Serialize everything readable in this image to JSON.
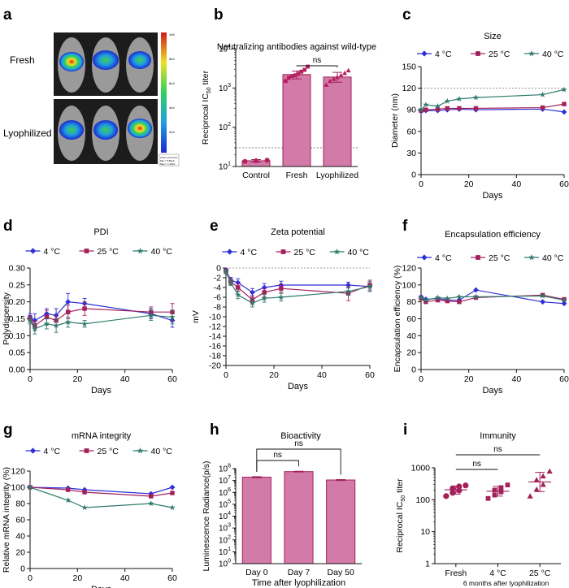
{
  "colors": {
    "c4": "#2f2fd8",
    "c25": "#a3205a",
    "c40": "#2f7a6d",
    "bar_fill": "#d27ba8",
    "bar_edge": "#a3205a",
    "lyo_marker": "#b5205e"
  },
  "panel_a": {
    "letter": "a",
    "row_labels": [
      "Fresh",
      "Lyophilized"
    ],
    "colorbar_ticks": [
      "1e5",
      "8e4",
      "6e4",
      "4e4",
      "2e4"
    ],
    "legend_lines": [
      "Units: p/s/cm²/sr",
      "Min = 5.82e3",
      "Max = 1.25e5"
    ]
  },
  "chart_data": [
    {
      "id": "b",
      "letter": "b",
      "type": "bar",
      "title": "Neutralizing antibodies against wild-type",
      "ylabel": "Reciprocal IC50 titer",
      "ylabel_main": "Reciprocal IC",
      "ylabel_sub": "50",
      "ylabel_tail": " titer",
      "yscale": "log",
      "ylim": [
        10,
        10000
      ],
      "yticks": [
        10,
        100,
        1000,
        10000
      ],
      "ytick_labels": [
        "10",
        "10",
        "10",
        "10"
      ],
      "ytick_exps": [
        "1",
        "2",
        "3",
        "4"
      ],
      "categories": [
        "Control",
        "Fresh",
        "Lyophilized"
      ],
      "values": [
        14,
        2200,
        1900
      ],
      "errors": [
        [
          13,
          15
        ],
        [
          1700,
          2700
        ],
        [
          1400,
          2500
        ]
      ],
      "points": [
        [
          13.5,
          14,
          14.5
        ],
        [
          1500,
          1800,
          2000,
          2100,
          2300,
          2600,
          2900,
          3500
        ],
        [
          1200,
          1500,
          1700,
          1900,
          2100,
          2400,
          2800
        ]
      ],
      "threshold": 30,
      "significance": [
        {
          "from": 1,
          "to": 2,
          "label": "ns"
        }
      ]
    },
    {
      "id": "c",
      "letter": "c",
      "type": "line",
      "title": "Size",
      "xlabel": "Days",
      "ylabel": "Diameter (nm)",
      "xlim": [
        0,
        60
      ],
      "ylim": [
        0,
        150
      ],
      "xticks": [
        0,
        20,
        40,
        60
      ],
      "yticks": [
        0,
        30,
        60,
        90,
        120,
        150
      ],
      "threshold": 120,
      "legend": [
        "4 °C",
        "25 °C",
        "40 °C"
      ],
      "series": [
        {
          "name": "4 °C",
          "x": [
            0,
            2,
            7,
            11,
            16,
            23,
            51,
            60
          ],
          "y": [
            88,
            89,
            89,
            90,
            91,
            90,
            91,
            87
          ]
        },
        {
          "name": "25 °C",
          "x": [
            0,
            2,
            7,
            11,
            16,
            23,
            51,
            60
          ],
          "y": [
            89,
            90,
            91,
            92,
            92,
            92,
            93,
            98
          ]
        },
        {
          "name": "40 °C",
          "x": [
            0,
            2,
            7,
            11,
            16,
            23,
            51,
            60
          ],
          "y": [
            90,
            97,
            95,
            102,
            105,
            107,
            111,
            118
          ]
        }
      ]
    },
    {
      "id": "d",
      "letter": "d",
      "type": "line",
      "title": "PDI",
      "xlabel": "Days",
      "ylabel": "Polydispersity",
      "xlim": [
        0,
        60
      ],
      "ylim": [
        0,
        0.3
      ],
      "xticks": [
        0,
        20,
        40,
        60
      ],
      "yticks": [
        0,
        0.05,
        0.1,
        0.15,
        0.2,
        0.25,
        0.3
      ],
      "ytick_labels": [
        "0.00",
        "0.05",
        "0.10",
        "0.15",
        "0.20",
        "0.25",
        "0.30"
      ],
      "legend": [
        "4 °C",
        "25 °C",
        "40 °C"
      ],
      "series": [
        {
          "name": "4 °C",
          "x": [
            0,
            2,
            7,
            11,
            16,
            23,
            51,
            60
          ],
          "y": [
            0.155,
            0.145,
            0.165,
            0.16,
            0.2,
            0.195,
            0.165,
            0.145
          ],
          "err": [
            0.01,
            0.02,
            0.015,
            0.02,
            0.025,
            0.015,
            0.015,
            0.02
          ]
        },
        {
          "name": "25 °C",
          "x": [
            0,
            2,
            7,
            11,
            16,
            23,
            51,
            60
          ],
          "y": [
            0.15,
            0.13,
            0.155,
            0.145,
            0.17,
            0.18,
            0.17,
            0.17
          ],
          "err": [
            0.01,
            0.015,
            0.02,
            0.015,
            0.02,
            0.02,
            0.015,
            0.025
          ]
        },
        {
          "name": "40 °C",
          "x": [
            0,
            2,
            7,
            11,
            16,
            23,
            51,
            60
          ],
          "y": [
            0.145,
            0.12,
            0.135,
            0.13,
            0.14,
            0.135,
            0.16,
            0.155
          ],
          "err": [
            0.01,
            0.015,
            0.015,
            0.02,
            0.015,
            0.01,
            0.015,
            0.02
          ]
        }
      ]
    },
    {
      "id": "e",
      "letter": "e",
      "type": "line",
      "title": "Zeta potential",
      "xlabel": "Days",
      "ylabel": "mV",
      "xlim": [
        0,
        60
      ],
      "ylim": [
        -20,
        0
      ],
      "xticks": [
        0,
        20,
        40,
        60
      ],
      "yticks": [
        0,
        -2,
        -4,
        -6,
        -8,
        -10,
        -12,
        -14,
        -16,
        -18,
        -20
      ],
      "threshold": 0,
      "legend": [
        "4 °C",
        "25 °C",
        "40 °C"
      ],
      "series": [
        {
          "name": "4 °C",
          "x": [
            0,
            2,
            5,
            11,
            16,
            23,
            51,
            60
          ],
          "y": [
            -0.5,
            -2.5,
            -3,
            -5,
            -4,
            -3.5,
            -3.5,
            -3.8
          ],
          "err": [
            0.4,
            0.6,
            0.8,
            0.8,
            0.8,
            0.8,
            0.6,
            1.0
          ]
        },
        {
          "name": "25 °C",
          "x": [
            0,
            2,
            5,
            11,
            16,
            23,
            51,
            60
          ],
          "y": [
            -0.6,
            -2.8,
            -4,
            -6.5,
            -5,
            -4.2,
            -5.2,
            -3.5
          ],
          "err": [
            0.4,
            0.6,
            0.8,
            0.8,
            0.8,
            0.8,
            1.5,
            1.0
          ]
        },
        {
          "name": "40 °C",
          "x": [
            0,
            2,
            5,
            11,
            16,
            23,
            51,
            60
          ],
          "y": [
            -0.8,
            -3,
            -5.5,
            -7.2,
            -6.2,
            -6,
            -4.8,
            -3.8
          ],
          "err": [
            0.4,
            0.6,
            0.8,
            0.8,
            0.8,
            0.8,
            0.8,
            1.0
          ]
        }
      ]
    },
    {
      "id": "f",
      "letter": "f",
      "type": "line",
      "title": "Encapsulation efficiency",
      "xlabel": "Days",
      "ylabel": "Encapsulation efficiency (%)",
      "xlim": [
        0,
        60
      ],
      "ylim": [
        0,
        120
      ],
      "xticks": [
        0,
        20,
        40,
        60
      ],
      "yticks": [
        0,
        20,
        40,
        60,
        80,
        100,
        120
      ],
      "legend": [
        "4 °C",
        "25 °C",
        "40 °C"
      ],
      "series": [
        {
          "name": "4 °C",
          "x": [
            0,
            2,
            7,
            11,
            16,
            23,
            51,
            60
          ],
          "y": [
            86,
            83,
            84,
            82,
            82,
            94,
            80,
            78
          ]
        },
        {
          "name": "25 °C",
          "x": [
            0,
            2,
            7,
            11,
            16,
            23,
            51,
            60
          ],
          "y": [
            84,
            80,
            82,
            81,
            80,
            85,
            88,
            83
          ]
        },
        {
          "name": "40 °C",
          "x": [
            0,
            2,
            7,
            11,
            16,
            23,
            51,
            60
          ],
          "y": [
            85,
            82,
            85,
            84,
            86,
            86,
            87,
            82
          ]
        }
      ]
    },
    {
      "id": "g",
      "letter": "g",
      "type": "line",
      "title": "mRNA integrity",
      "xlabel": "Days",
      "ylabel": "Relative mRNA integrity (%)",
      "xlim": [
        0,
        60
      ],
      "ylim": [
        0,
        120
      ],
      "xticks": [
        0,
        20,
        40,
        60
      ],
      "yticks": [
        0,
        20,
        40,
        60,
        80,
        100,
        120
      ],
      "legend": [
        "4 °C",
        "25 °C",
        "40 °C"
      ],
      "series": [
        {
          "name": "4 °C",
          "x": [
            0,
            16,
            23,
            51,
            60
          ],
          "y": [
            100,
            99,
            97,
            92,
            100
          ]
        },
        {
          "name": "25 °C",
          "x": [
            0,
            16,
            23,
            51,
            60
          ],
          "y": [
            100,
            97,
            94,
            89,
            93
          ]
        },
        {
          "name": "40 °C",
          "x": [
            0,
            16,
            23,
            51,
            60
          ],
          "y": [
            100,
            84,
            75,
            80,
            75
          ]
        }
      ]
    },
    {
      "id": "h",
      "letter": "h",
      "type": "bar",
      "title": "Bioactivity",
      "xlabel": "Time after lyophilization",
      "ylabel": "Luminescence Radiance(p/s)",
      "yscale": "log",
      "ylim": [
        1,
        100000000
      ],
      "yticks": [
        1,
        10,
        100,
        1000,
        10000,
        100000,
        1000000,
        10000000,
        100000000
      ],
      "ytick_exps": [
        "0",
        "1",
        "2",
        "3",
        "4",
        "5",
        "6",
        "7",
        "8"
      ],
      "categories": [
        "Day 0",
        "Day 7",
        "Day 50"
      ],
      "values": [
        19000000,
        56000000,
        11000000
      ],
      "errors": [
        [
          17000000,
          21000000
        ],
        [
          52000000,
          60000000
        ],
        [
          10000000,
          12000000
        ]
      ],
      "significance": [
        {
          "from": 0,
          "to": 1,
          "label": "ns"
        },
        {
          "from": 0,
          "to": 2,
          "label": "ns"
        }
      ]
    },
    {
      "id": "i",
      "letter": "i",
      "type": "scatter",
      "title": "Immunity",
      "ylabel": "Reciprocal IC50 titer",
      "ylabel_main": "Reciprocal IC",
      "ylabel_sub": "50",
      "ylabel_tail": " titer",
      "xlabel": "6 months after lyophilization",
      "yscale": "log",
      "ylim": [
        1,
        1000
      ],
      "yticks": [
        1,
        10,
        100,
        1000
      ],
      "ytick_labels": [
        "1",
        "10",
        "100",
        "1000"
      ],
      "categories": [
        "Fresh",
        "4 °C",
        "25 °C"
      ],
      "means": [
        205,
        185,
        360
      ],
      "sd": [
        [
          150,
          270
        ],
        [
          130,
          260
        ],
        [
          180,
          720
        ]
      ],
      "points": [
        [
          130,
          165,
          195,
          225,
          260,
          280
        ],
        [
          110,
          140,
          175,
          200,
          240,
          290
        ],
        [
          130,
          210,
          300,
          420,
          550,
          780
        ]
      ],
      "significance": [
        {
          "from": 0,
          "to": 1,
          "label": "ns"
        },
        {
          "from": 0,
          "to": 2,
          "label": "ns"
        }
      ]
    }
  ]
}
